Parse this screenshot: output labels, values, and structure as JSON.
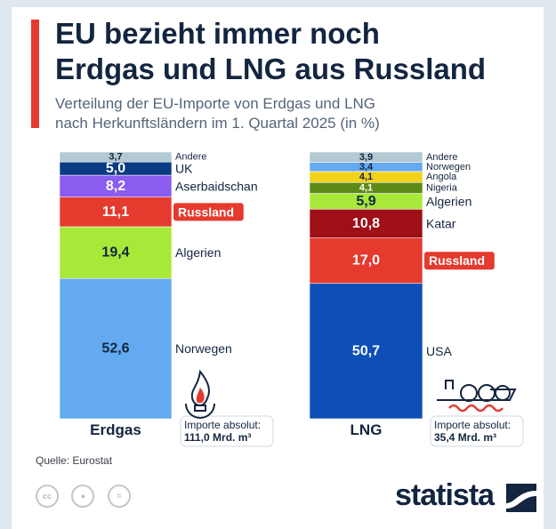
{
  "title_line1": "EU bezieht immer noch",
  "title_line2": "Erdgas und LNG aus Russland",
  "subtitle_line1": "Verteilung der EU-Importe von Erdgas und LNG",
  "subtitle_line2": "nach Herkunftsländern im 1. Quartal 2025 (in %)",
  "source": "Quelle: Eurostat",
  "logo": "statista",
  "icons": [
    "cc-icon",
    "person-icon",
    "equals-icon",
    "flame-icon",
    "lng-ship-icon",
    "statista-logo-icon"
  ],
  "colors": {
    "highlight": "#e53a2e",
    "title": "#13253f"
  },
  "chart_data": [
    {
      "type": "bar",
      "stacked": true,
      "category": "Erdgas",
      "ylim": [
        0,
        100
      ],
      "series": [
        {
          "name": "Norwegen",
          "value": 52.6,
          "label": "52,6",
          "color": "#63aaf0",
          "text_color": "#13253f"
        },
        {
          "name": "Algerien",
          "value": 19.4,
          "label": "19,4",
          "color": "#a8e839",
          "text_color": "#13253f"
        },
        {
          "name": "Russland",
          "value": 11.1,
          "label": "11,1",
          "color": "#e53a2e",
          "text_color": "#ffffff",
          "highlight": true
        },
        {
          "name": "Aserbaidschan",
          "value": 8.2,
          "label": "8,2",
          "color": "#8a5cf0",
          "text_color": "#ffffff"
        },
        {
          "name": "UK",
          "value": 5.0,
          "label": "5,0",
          "color": "#0b3b82",
          "text_color": "#ffffff"
        },
        {
          "name": "Andere",
          "value": 3.7,
          "label": "3,7",
          "color": "#b2c8d3",
          "text_color": "#13253f"
        }
      ],
      "note_line1": "Importe absolut:",
      "note_line2": "111,0 Mrd. m³"
    },
    {
      "type": "bar",
      "stacked": true,
      "category": "LNG",
      "ylim": [
        0,
        100
      ],
      "series": [
        {
          "name": "USA",
          "value": 50.7,
          "label": "50,7",
          "color": "#0d4fb6",
          "text_color": "#ffffff"
        },
        {
          "name": "Russland",
          "value": 17.0,
          "label": "17,0",
          "color": "#e53a2e",
          "text_color": "#ffffff",
          "highlight": true
        },
        {
          "name": "Katar",
          "value": 10.8,
          "label": "10,8",
          "color": "#9e0f16",
          "text_color": "#ffffff"
        },
        {
          "name": "Algerien",
          "value": 5.9,
          "label": "5,9",
          "color": "#a8e839",
          "text_color": "#13253f"
        },
        {
          "name": "Nigeria",
          "value": 4.1,
          "label": "4,1",
          "color": "#5d8a16",
          "text_color": "#ffffff"
        },
        {
          "name": "Angola",
          "value": 4.1,
          "label": "4,1",
          "color": "#f3d21c",
          "text_color": "#13253f"
        },
        {
          "name": "Norwegen",
          "value": 3.4,
          "label": "3,4",
          "color": "#63aaf0",
          "text_color": "#13253f"
        },
        {
          "name": "Andere",
          "value": 3.9,
          "label": "3,9",
          "color": "#b2c8d3",
          "text_color": "#13253f"
        }
      ],
      "note_line1": "Importe absolut:",
      "note_line2": "35,4 Mrd. m³"
    }
  ]
}
